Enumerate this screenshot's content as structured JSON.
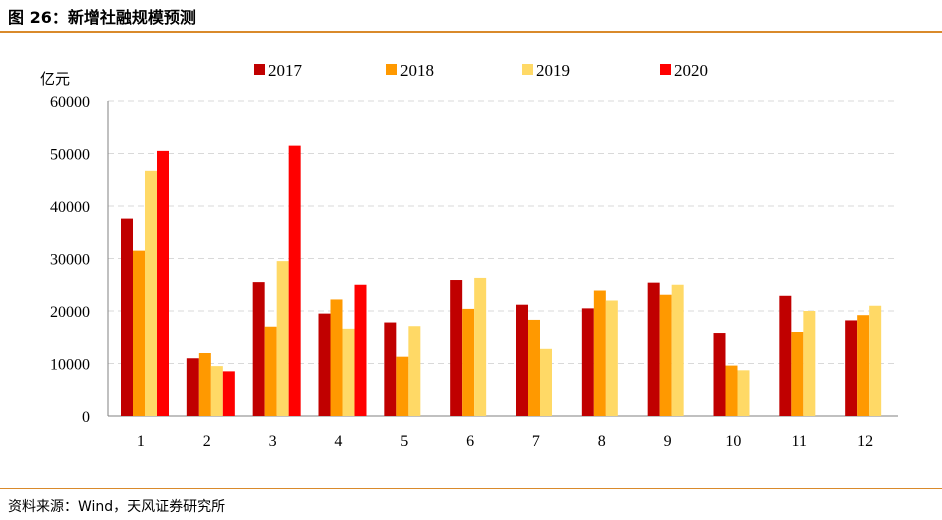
{
  "header": {
    "title": "图 26：新增社融规模预测"
  },
  "footer": {
    "source": "资料来源：Wind，天风证券研究所"
  },
  "colors": {
    "accent_rule": "#d98a2b",
    "grid": "#d9d9d9",
    "axis": "#808080"
  },
  "chart_data": {
    "type": "bar",
    "unit_label": "亿元",
    "categories": [
      "1",
      "2",
      "3",
      "4",
      "5",
      "6",
      "7",
      "8",
      "9",
      "10",
      "11",
      "12"
    ],
    "ylim": [
      0,
      60000
    ],
    "yticks": [
      0,
      10000,
      20000,
      30000,
      40000,
      50000,
      60000
    ],
    "grid": true,
    "legend_position": "top",
    "series": [
      {
        "name": "2017",
        "color": "#c00000",
        "values": [
          37600,
          11000,
          25500,
          19500,
          17800,
          25900,
          21200,
          20500,
          25400,
          15800,
          22900,
          18200
        ]
      },
      {
        "name": "2018",
        "color": "#ff9900",
        "values": [
          31500,
          12000,
          17000,
          22200,
          11300,
          20400,
          18300,
          23900,
          23100,
          9600,
          16000,
          19200
        ]
      },
      {
        "name": "2019",
        "color": "#ffd966",
        "values": [
          46700,
          9500,
          29500,
          16600,
          17100,
          26300,
          12800,
          22000,
          25000,
          8700,
          20000,
          21000
        ]
      },
      {
        "name": "2020",
        "color": "#ff0000",
        "values": [
          50500,
          8500,
          51500,
          25000,
          null,
          null,
          null,
          null,
          null,
          null,
          null,
          null
        ]
      }
    ]
  }
}
